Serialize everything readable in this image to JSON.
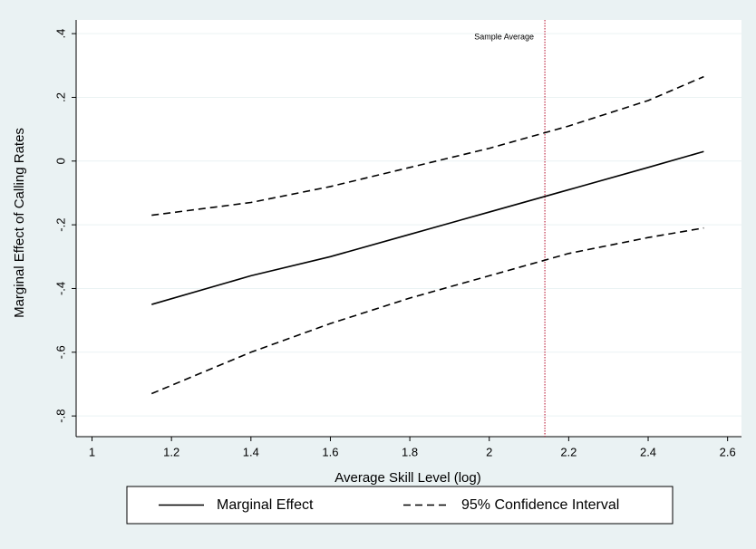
{
  "chart_data": {
    "type": "line",
    "x_label": "Average Skill Level (log)",
    "y_label": "Marginal Effect of Calling Rates",
    "x": [
      1.15,
      1.4,
      1.6,
      1.8,
      2.0,
      2.2,
      2.4,
      2.54
    ],
    "series": [
      {
        "name": "Marginal Effect",
        "color": "#000000",
        "dash": "none",
        "values": [
          -0.45,
          -0.36,
          -0.3,
          -0.23,
          -0.16,
          -0.09,
          -0.02,
          0.03
        ]
      },
      {
        "name": "95% Confidence Interval",
        "color": "#000000",
        "dash": "8 5",
        "values": [
          -0.17,
          -0.13,
          -0.08,
          -0.02,
          0.04,
          0.11,
          0.19,
          0.265
        ],
        "lower": [
          -0.73,
          -0.6,
          -0.51,
          -0.43,
          -0.36,
          -0.29,
          -0.24,
          -0.21
        ]
      }
    ],
    "reference_line": {
      "x": 2.14,
      "label": "Sample Average",
      "color": "#c0304a"
    },
    "xlim": [
      0.96,
      2.635
    ],
    "ylim": [
      -0.865,
      0.443
    ],
    "xticks": [
      1,
      1.2,
      1.4,
      1.6,
      1.8,
      2,
      2.2,
      2.4,
      2.6
    ],
    "yticks": [
      {
        "value": 0.4,
        "label": ".4"
      },
      {
        "value": 0.2,
        "label": ".2"
      },
      0,
      {
        "value": -0.2,
        "label": "-.2"
      },
      {
        "value": -0.4,
        "label": "-.4"
      },
      {
        "value": -0.6,
        "label": "-.6"
      },
      {
        "value": -0.8,
        "label": "-.8"
      }
    ],
    "grid": true,
    "legend": "bottom"
  }
}
